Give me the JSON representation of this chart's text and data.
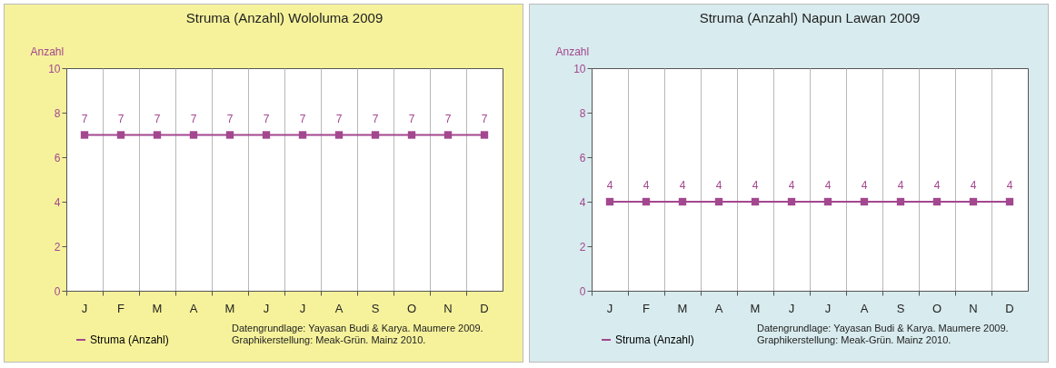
{
  "chart_data": [
    {
      "type": "line",
      "title": "Struma (Anzahl) Wololuma 2009",
      "ylabel": "Anzahl",
      "categories": [
        "J",
        "F",
        "M",
        "A",
        "M",
        "J",
        "J",
        "A",
        "S",
        "O",
        "N",
        "D"
      ],
      "series": [
        {
          "name": "Struma (Anzahl)",
          "color": "#a3478f",
          "values": [
            7,
            7,
            7,
            7,
            7,
            7,
            7,
            7,
            7,
            7,
            7,
            7
          ]
        }
      ],
      "ylim": [
        0,
        10
      ],
      "yticks": [
        0,
        2,
        4,
        6,
        8,
        10
      ],
      "grid": "x",
      "legend": "bottom left",
      "marker": "square",
      "data_labels": true,
      "annotations": [
        "Datengrundlage: Yayasan Budi & Karya. Maumere 2009.",
        "Graphikerstellung: Meak-Grün. Mainz 2010."
      ]
    },
    {
      "type": "line",
      "title": "Struma (Anzahl) Napun Lawan 2009",
      "ylabel": "Anzahl",
      "categories": [
        "J",
        "F",
        "M",
        "A",
        "M",
        "J",
        "J",
        "A",
        "S",
        "O",
        "N",
        "D"
      ],
      "series": [
        {
          "name": "Struma (Anzahl)",
          "color": "#a3478f",
          "values": [
            4,
            4,
            4,
            4,
            4,
            4,
            4,
            4,
            4,
            4,
            4,
            4
          ]
        }
      ],
      "ylim": [
        0,
        10
      ],
      "yticks": [
        0,
        2,
        4,
        6,
        8,
        10
      ],
      "grid": "x",
      "legend": "bottom left",
      "marker": "square",
      "data_labels": true,
      "annotations": [
        "Datengrundlage: Yayasan Budi & Karya. Maumere 2009.",
        "Graphikerstellung: Meak-Grün. Mainz 2010."
      ]
    }
  ]
}
